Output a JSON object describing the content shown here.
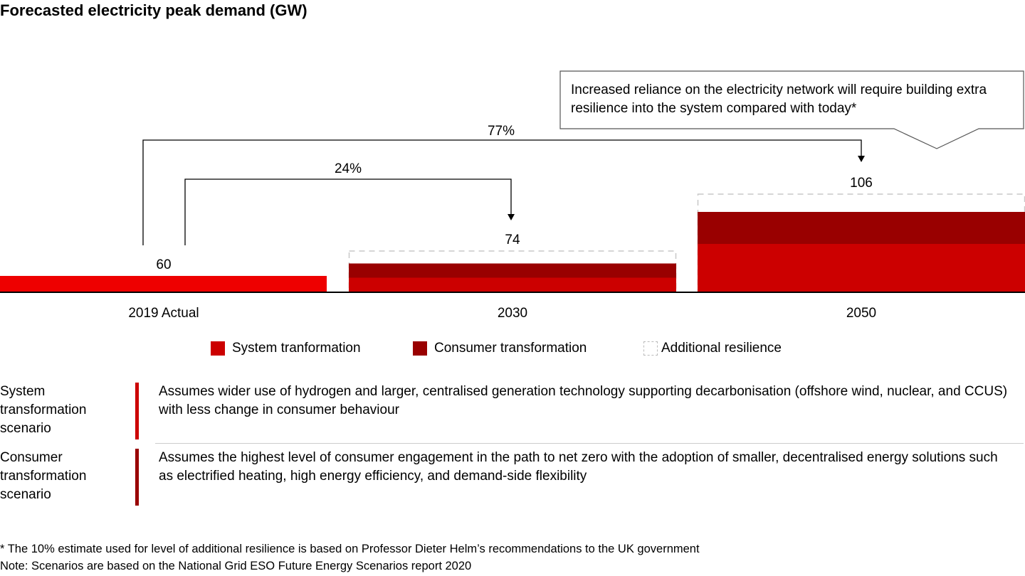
{
  "title": "Forecasted electricity peak demand (GW)",
  "chart_data": {
    "type": "bar",
    "title": "Forecasted electricity peak demand (GW)",
    "categories": [
      "2019 Actual",
      "2030",
      "2050"
    ],
    "series": [
      {
        "name": "Actual",
        "values": [
          60,
          null,
          null
        ],
        "color": "#ee0000"
      },
      {
        "name": "System tranformation",
        "values": [
          null,
          59,
          78
        ],
        "color": "#cc0000"
      },
      {
        "name": "Consumer transformation",
        "values": [
          null,
          67,
          96
        ],
        "color": "#990000"
      },
      {
        "name": "Additional resilience",
        "values": [
          null,
          74,
          106
        ],
        "style": "dashed-outline"
      }
    ],
    "data_labels": [
      "60",
      "74",
      "106"
    ],
    "ylim": [
      51,
      110
    ],
    "grid": false,
    "legend": "bottom",
    "annotations": [
      {
        "label": "24%",
        "from": "2019 Actual",
        "to": "2030"
      },
      {
        "label": "77%",
        "from": "2019 Actual",
        "to": "2050"
      }
    ],
    "callout": "Increased reliance on the electricity network will require building extra resilience into the system compared with today*"
  },
  "scenarios": [
    {
      "label": "System transformation scenario",
      "text": "Assumes wider use of hydrogen and larger, centralised generation technology supporting decarbonisation (offshore wind, nuclear, and CCUS) with less change in consumer behaviour",
      "color": "#cc0000"
    },
    {
      "label": "Consumer transformation scenario",
      "text": "Assumes the highest level of consumer engagement in the path to net zero with the adoption of smaller, decentralised energy solutions such as electrified heating, high energy efficiency, and demand-side flexibility",
      "color": "#990000"
    }
  ],
  "footnotes": [
    "* The 10% estimate used for level of additional resilience is based on Professor Dieter Helm’s recommendations to the UK government",
    "Note: Scenarios are based on the National Grid ESO Future Energy Scenarios report 2020"
  ]
}
